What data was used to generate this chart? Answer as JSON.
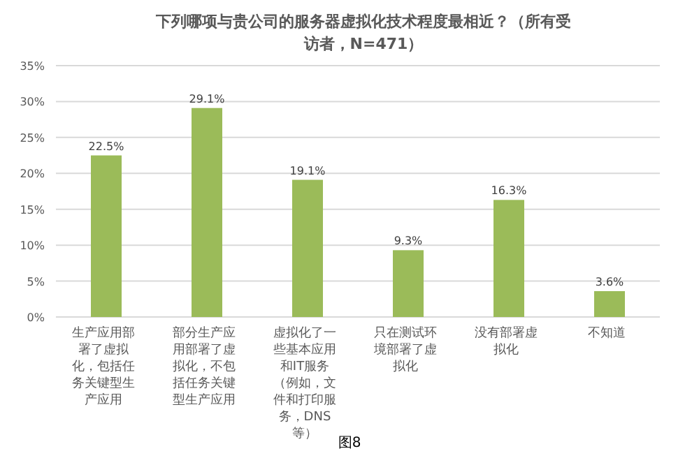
{
  "chart_data": {
    "type": "bar",
    "title": "下列哪项与贵公司的服务器虚拟化技术程度最相近？（所有受访者，N=471）",
    "categories": [
      "生产应用部署了虚拟化，包括任务关键型生产应用",
      "部分生产应用部署了虚拟化，不包括任务关键型生产应用",
      "虚拟化了一些基本应用和IT服务（例如，文件和打印服务，DNS等）",
      "只在测试环境部署了虚拟化",
      "没有部署虚拟化",
      "不知道"
    ],
    "values": [
      22.5,
      29.1,
      19.1,
      9.3,
      16.3,
      3.6
    ],
    "value_labels": [
      "22.5%",
      "29.1%",
      "19.1%",
      "9.3%",
      "16.3%",
      "3.6%"
    ],
    "color": "#9bbb59",
    "ylim": [
      0,
      35
    ],
    "yticks": [
      {
        "value": 0,
        "label": "0%"
      },
      {
        "value": 5,
        "label": "5%"
      },
      {
        "value": 10,
        "label": "10%"
      },
      {
        "value": 15,
        "label": "15%"
      },
      {
        "value": 20,
        "label": "20%"
      },
      {
        "value": 25,
        "label": "25%"
      },
      {
        "value": 30,
        "label": "30%"
      },
      {
        "value": 35,
        "label": "35%"
      }
    ],
    "grid": "y",
    "annotations": [
      "图8"
    ]
  }
}
